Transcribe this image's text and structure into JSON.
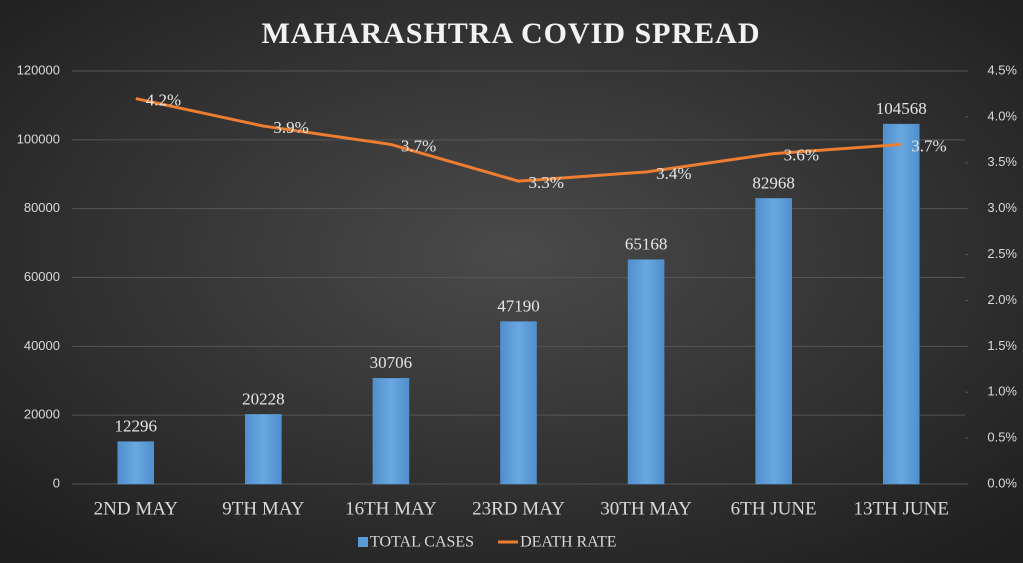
{
  "chart_data": {
    "type": "bar",
    "title": "MAHARASHTRA COVID SPREAD",
    "categories": [
      "2ND MAY",
      "9TH MAY",
      "16TH MAY",
      "23RD MAY",
      "30TH MAY",
      "6TH JUNE",
      "13TH JUNE"
    ],
    "series": [
      {
        "name": "TOTAL CASES",
        "color": "#5b9bd5",
        "values": [
          12296,
          20228,
          30706,
          47190,
          65168,
          82968,
          104568
        ]
      },
      {
        "name": "DEATH RATE",
        "color": "#ed7d31",
        "type": "line",
        "axis": "y2",
        "values": [
          4.2,
          3.9,
          3.7,
          3.3,
          3.4,
          3.6,
          3.7
        ],
        "value_labels": [
          "4.2%",
          "3.9%",
          "3.7%",
          "3.3%",
          "3.4%",
          "3.6%",
          "3.7%"
        ]
      }
    ],
    "ylim": [
      0,
      120000
    ],
    "yticks": [
      0,
      20000,
      40000,
      60000,
      80000,
      100000,
      120000
    ],
    "y2lim": [
      0,
      4.5
    ],
    "y2ticks": [
      {
        "value": 0,
        "label": "0.0%"
      },
      {
        "value": 0.5,
        "label": "0.5%"
      },
      {
        "value": 1,
        "label": "1.0%"
      },
      {
        "value": 1.5,
        "label": "1.5%"
      },
      {
        "value": 2,
        "label": "2.0%"
      },
      {
        "value": 2.5,
        "label": "2.5%"
      },
      {
        "value": 3,
        "label": "3.0%"
      },
      {
        "value": 3.5,
        "label": "3.5%"
      },
      {
        "value": 4,
        "label": "4.0%"
      },
      {
        "value": 4.5,
        "label": "4.5%"
      }
    ],
    "grid": true,
    "legend": "bottom"
  }
}
